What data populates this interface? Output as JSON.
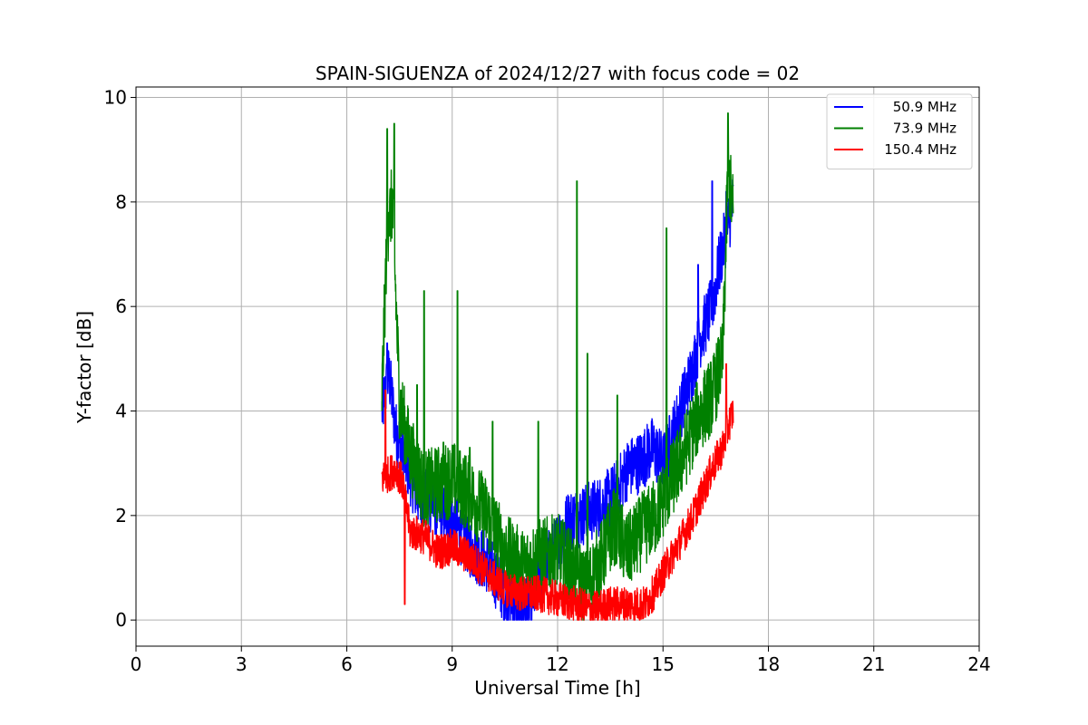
{
  "chart_data": {
    "type": "line",
    "title": "SPAIN-SIGUENZA of 2024/12/27 with focus code = 02",
    "xlabel": "Universal Time [h]",
    "ylabel": "Y-factor [dB]",
    "xlim": [
      0,
      24
    ],
    "ylim": [
      -0.5,
      10.2
    ],
    "xticks": [
      0,
      3,
      6,
      9,
      12,
      15,
      18,
      21,
      24
    ],
    "xtick_labels": [
      "0",
      "3",
      "6",
      "9",
      "12",
      "15",
      "18",
      "21",
      "24"
    ],
    "yticks": [
      0,
      2,
      4,
      6,
      8,
      10
    ],
    "ytick_labels": [
      "0",
      "2",
      "4",
      "6",
      "8",
      "10"
    ],
    "grid": true,
    "legend_position": "top-right",
    "series": [
      {
        "name": "50.9 MHz",
        "color": "#0000ff",
        "x": [
          7.0,
          7.2,
          7.4,
          7.7,
          8.0,
          8.5,
          9.0,
          9.5,
          10.0,
          10.5,
          10.9,
          11.2,
          11.5,
          12.0,
          12.3,
          12.7,
          13.0,
          13.3,
          13.7,
          14.0,
          14.3,
          14.7,
          15.0,
          15.4,
          15.8,
          16.1,
          16.4,
          16.6,
          16.8,
          17.0
        ],
        "y": [
          4.0,
          4.7,
          3.6,
          3.0,
          2.4,
          2.2,
          1.9,
          1.4,
          1.1,
          0.5,
          0.2,
          0.3,
          0.8,
          1.5,
          1.9,
          2.0,
          2.1,
          2.2,
          2.5,
          2.9,
          3.0,
          3.3,
          3.0,
          3.8,
          4.7,
          5.5,
          6.0,
          6.8,
          7.4,
          8.0
        ],
        "spikes": [
          [
            7.15,
            5.3
          ],
          [
            16.0,
            6.8
          ],
          [
            16.4,
            8.4
          ],
          [
            16.8,
            8.2
          ]
        ]
      },
      {
        "name": "73.9 MHz",
        "color": "#008000",
        "x": [
          7.0,
          7.15,
          7.3,
          7.5,
          7.8,
          8.2,
          8.6,
          9.0,
          9.5,
          10.0,
          10.5,
          11.0,
          11.5,
          12.0,
          12.4,
          12.8,
          13.2,
          13.6,
          14.0,
          14.4,
          14.8,
          15.2,
          15.6,
          16.0,
          16.4,
          16.7,
          16.85,
          17.0
        ],
        "y": [
          4.3,
          7.5,
          8.0,
          4.2,
          3.2,
          2.5,
          2.6,
          2.7,
          2.4,
          2.0,
          1.3,
          1.0,
          1.2,
          1.3,
          1.0,
          0.6,
          1.1,
          1.8,
          1.3,
          1.7,
          2.0,
          2.6,
          3.2,
          3.9,
          4.3,
          5.0,
          8.6,
          7.8
        ],
        "spikes": [
          [
            7.15,
            9.4
          ],
          [
            7.35,
            9.5
          ],
          [
            7.2,
            7.8
          ],
          [
            8.2,
            6.3
          ],
          [
            8.0,
            4.5
          ],
          [
            8.75,
            3.4
          ],
          [
            9.15,
            6.3
          ],
          [
            9.5,
            3.3
          ],
          [
            10.15,
            3.8
          ],
          [
            11.45,
            3.8
          ],
          [
            12.55,
            8.4
          ],
          [
            12.85,
            5.1
          ],
          [
            13.7,
            4.3
          ],
          [
            15.1,
            7.5
          ],
          [
            16.85,
            9.7
          ]
        ]
      },
      {
        "name": "150.4 MHz",
        "color": "#ff0000",
        "x": [
          7.0,
          7.2,
          7.4,
          7.6,
          7.8,
          8.2,
          8.6,
          9.0,
          9.5,
          10.0,
          10.5,
          11.0,
          11.5,
          12.0,
          12.5,
          13.0,
          13.5,
          14.0,
          14.5,
          14.8,
          15.0,
          15.4,
          15.8,
          16.1,
          16.4,
          16.7,
          16.9,
          17.0
        ],
        "y": [
          2.7,
          2.8,
          2.9,
          2.6,
          1.7,
          1.6,
          1.3,
          1.4,
          1.2,
          0.9,
          0.6,
          0.5,
          0.5,
          0.4,
          0.3,
          0.2,
          0.3,
          0.3,
          0.3,
          0.6,
          0.9,
          1.4,
          1.9,
          2.4,
          2.9,
          3.3,
          3.8,
          4.0
        ],
        "spikes": [
          [
            7.1,
            4.4
          ],
          [
            7.65,
            0.3
          ],
          [
            16.8,
            4.9
          ]
        ]
      }
    ]
  }
}
